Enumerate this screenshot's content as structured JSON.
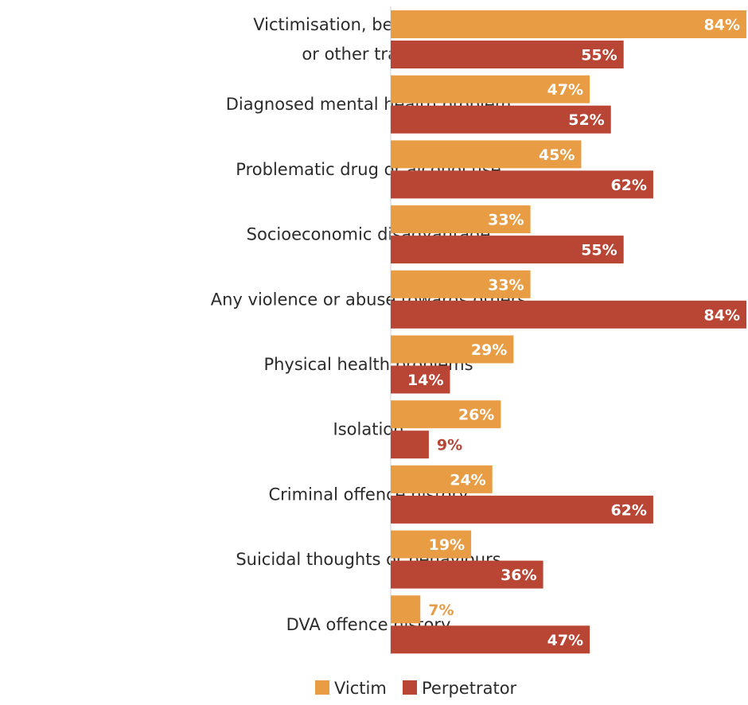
{
  "chart_data": {
    "type": "bar",
    "orientation": "horizontal",
    "title": "",
    "xlabel": "",
    "ylabel": "",
    "xlim": [
      0,
      84
    ],
    "grid": false,
    "legend_position": "bottom",
    "value_suffix": "%",
    "categories": [
      "Victimisation, bereavement or other trauma",
      "Diagnosed mental health problem",
      "Problematic drug or alcohol use",
      "Socioeconomic disadvantage",
      "Any violence or abuse towards others",
      "Physical health problems",
      "Isolation",
      "Criminal offence history",
      "Suicidal thoughts or behaviours",
      "DVA  offence history"
    ],
    "category_lines": [
      [
        "Victimisation, bereavement",
        "or other trauma"
      ],
      [
        "Diagnosed mental health problem"
      ],
      [
        "Problematic drug or alcohol use"
      ],
      [
        "Socioeconomic disadvantage"
      ],
      [
        "Any violence or abuse towards others"
      ],
      [
        "Physical health problems"
      ],
      [
        "Isolation"
      ],
      [
        "Criminal offence history"
      ],
      [
        "Suicidal thoughts or behaviours"
      ],
      [
        "DVA  offence history"
      ]
    ],
    "series": [
      {
        "name": "Victim",
        "color": "#E89C43",
        "values": [
          84,
          47,
          45,
          33,
          33,
          29,
          26,
          24,
          19,
          7
        ]
      },
      {
        "name": "Perpetrator",
        "color": "#B94535",
        "values": [
          55,
          52,
          62,
          55,
          84,
          14,
          9,
          62,
          36,
          47
        ]
      }
    ]
  }
}
